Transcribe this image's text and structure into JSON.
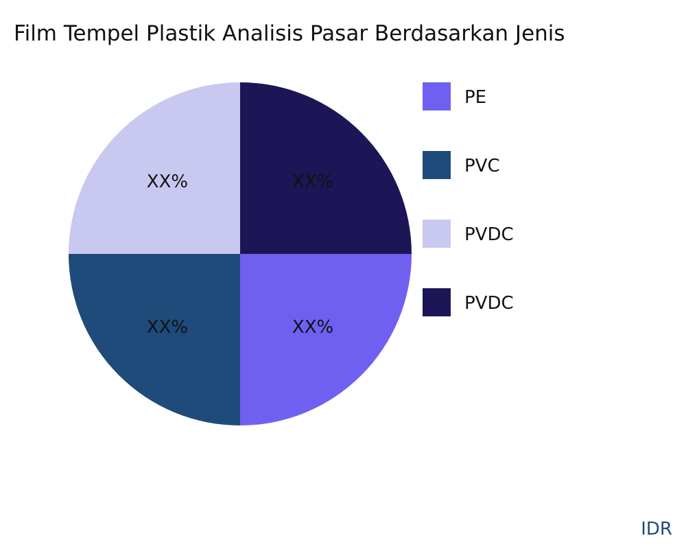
{
  "chart_data": {
    "type": "pie",
    "title": "Film Tempel Plastik Analisis Pasar Berdasarkan Jenis",
    "slices": [
      {
        "name": "PE",
        "value": 25,
        "label": "XX%",
        "color": "#7060F2"
      },
      {
        "name": "PVC",
        "value": 25,
        "label": "XX%",
        "color": "#1F4B7A"
      },
      {
        "name": "PVDC",
        "value": 25,
        "label": "XX%",
        "color": "#C8C8F0"
      },
      {
        "name": "PVDC",
        "value": 25,
        "label": "XX%",
        "color": "#1C1656"
      }
    ],
    "legend_position": "right"
  },
  "watermark": {
    "text": "IDR",
    "color": "#1F4B7A"
  }
}
